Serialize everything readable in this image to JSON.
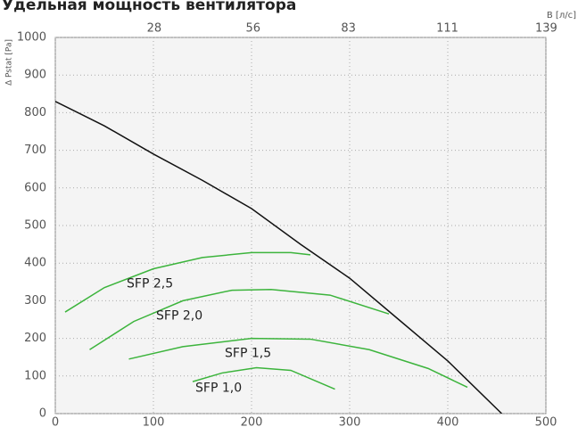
{
  "chart_data": {
    "type": "line",
    "title": "Удельная мощность вентилятора",
    "y_label": "Δ Pstat [Pa]",
    "x2_label": "В [л/с]",
    "xlim": [
      0,
      500
    ],
    "xticks": [
      0,
      100,
      200,
      300,
      400,
      500
    ],
    "x2lim": [
      0,
      138.9
    ],
    "x2ticks": [
      28,
      56,
      83,
      111,
      139
    ],
    "ylim": [
      0,
      1000
    ],
    "yticks": [
      0,
      100,
      200,
      300,
      400,
      500,
      600,
      700,
      800,
      900,
      1000
    ],
    "grid": true,
    "series": [
      {
        "color": "#111111",
        "x": [
          0,
          50,
          100,
          150,
          200,
          250,
          300,
          350,
          400,
          455
        ],
        "values": [
          830,
          765,
          690,
          620,
          545,
          450,
          360,
          250,
          140,
          0
        ]
      },
      {
        "name": "SFP 2,5",
        "color": "#3cb43c",
        "x": [
          10,
          50,
          100,
          150,
          200,
          240,
          260
        ],
        "values": [
          270,
          335,
          385,
          415,
          428,
          428,
          422
        ]
      },
      {
        "name": "SFP 2,0",
        "color": "#3cb43c",
        "x": [
          35,
          80,
          130,
          180,
          220,
          280,
          340
        ],
        "values": [
          170,
          245,
          300,
          328,
          330,
          315,
          265
        ]
      },
      {
        "name": "SFP 1,5",
        "color": "#3cb43c",
        "x": [
          75,
          130,
          200,
          260,
          320,
          380,
          420
        ],
        "values": [
          145,
          178,
          200,
          198,
          170,
          120,
          70
        ]
      },
      {
        "name": "SFP 1,0",
        "color": "#3cb43c",
        "x": [
          140,
          170,
          205,
          240,
          285
        ],
        "values": [
          85,
          108,
          122,
          115,
          65
        ]
      }
    ]
  }
}
